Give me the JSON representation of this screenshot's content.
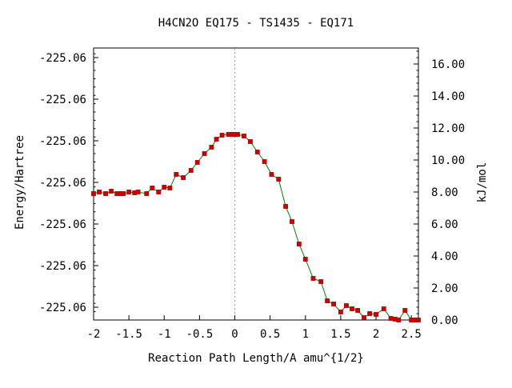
{
  "chart_data": {
    "type": "line",
    "title": "H4CN2O   EQ175 - TS1435 - EQ171",
    "xlabel": "Reaction Path Length/A amu^{1/2}",
    "ylabel_left": "Energy/Hartree",
    "ylabel_right": "kJ/mol",
    "xlim": [
      -2.0,
      2.6
    ],
    "ylim_right": [
      0.0,
      17.0
    ],
    "x_ticks": [
      {
        "value": -2.0,
        "label": "-2"
      },
      {
        "value": -1.5,
        "label": "-1.5"
      },
      {
        "value": -1.0,
        "label": "-1"
      },
      {
        "value": -0.5,
        "label": "-0.5"
      },
      {
        "value": 0.0,
        "label": "0"
      },
      {
        "value": 0.5,
        "label": "0.5"
      },
      {
        "value": 1.0,
        "label": "1"
      },
      {
        "value": 1.5,
        "label": "1.5"
      },
      {
        "value": 2.0,
        "label": "2"
      },
      {
        "value": 2.5,
        "label": "2.5"
      }
    ],
    "left_ticks": [
      {
        "value": 0.8,
        "label": "-225.06"
      },
      {
        "value": 3.4,
        "label": "-225.06"
      },
      {
        "value": 6.0,
        "label": "-225.06"
      },
      {
        "value": 8.6,
        "label": "-225.06"
      },
      {
        "value": 11.2,
        "label": "-225.06"
      },
      {
        "value": 13.8,
        "label": "-225.06"
      },
      {
        "value": 16.4,
        "label": "-225.06"
      }
    ],
    "right_ticks": [
      {
        "value": 0,
        "label": "0.00"
      },
      {
        "value": 2,
        "label": "2.00"
      },
      {
        "value": 4,
        "label": "4.00"
      },
      {
        "value": 6,
        "label": "6.00"
      },
      {
        "value": 8,
        "label": "8.00"
      },
      {
        "value": 10,
        "label": "10.00"
      },
      {
        "value": 12,
        "label": "12.00"
      },
      {
        "value": 14,
        "label": "14.00"
      },
      {
        "value": 16,
        "label": "16.00"
      }
    ],
    "ts_marker_x": 0.0,
    "line_color": "#008000",
    "marker_color": "#cc0000",
    "ts_line_color": "#999999",
    "series": [
      {
        "x": [
          -2.0,
          -1.92,
          -1.83,
          -1.75,
          -1.67,
          -1.62,
          -1.58,
          -1.5,
          -1.42,
          -1.37,
          -1.25,
          -1.17,
          -1.08,
          -1.0,
          -0.92,
          -0.83,
          -0.73,
          -0.62,
          -0.53,
          -0.43,
          -0.33,
          -0.26,
          -0.18,
          -0.09,
          -0.04,
          0.0,
          0.04,
          0.13,
          0.22,
          0.32,
          0.42,
          0.52,
          0.62,
          0.72,
          0.81,
          0.91,
          1.0,
          1.11,
          1.22,
          1.31,
          1.4,
          1.5,
          1.58,
          1.66,
          1.74,
          1.83,
          1.91,
          2.0,
          2.11,
          2.21,
          2.27,
          2.32,
          2.41,
          2.5,
          2.54,
          2.57,
          2.6
        ],
        "y": [
          7.9,
          8.0,
          7.9,
          8.05,
          7.9,
          7.9,
          7.9,
          8.0,
          7.95,
          8.0,
          7.9,
          8.25,
          8.0,
          8.3,
          8.25,
          9.1,
          8.9,
          9.35,
          9.85,
          10.4,
          10.8,
          11.3,
          11.55,
          11.6,
          11.6,
          11.6,
          11.6,
          11.5,
          11.15,
          10.5,
          9.9,
          9.1,
          8.8,
          7.1,
          6.15,
          4.75,
          3.8,
          2.6,
          2.4,
          1.2,
          1.0,
          0.5,
          0.9,
          0.7,
          0.6,
          0.15,
          0.4,
          0.35,
          0.7,
          0.1,
          0.05,
          0.0,
          0.6,
          0.0,
          0.0,
          0.0,
          0.0
        ]
      }
    ]
  }
}
